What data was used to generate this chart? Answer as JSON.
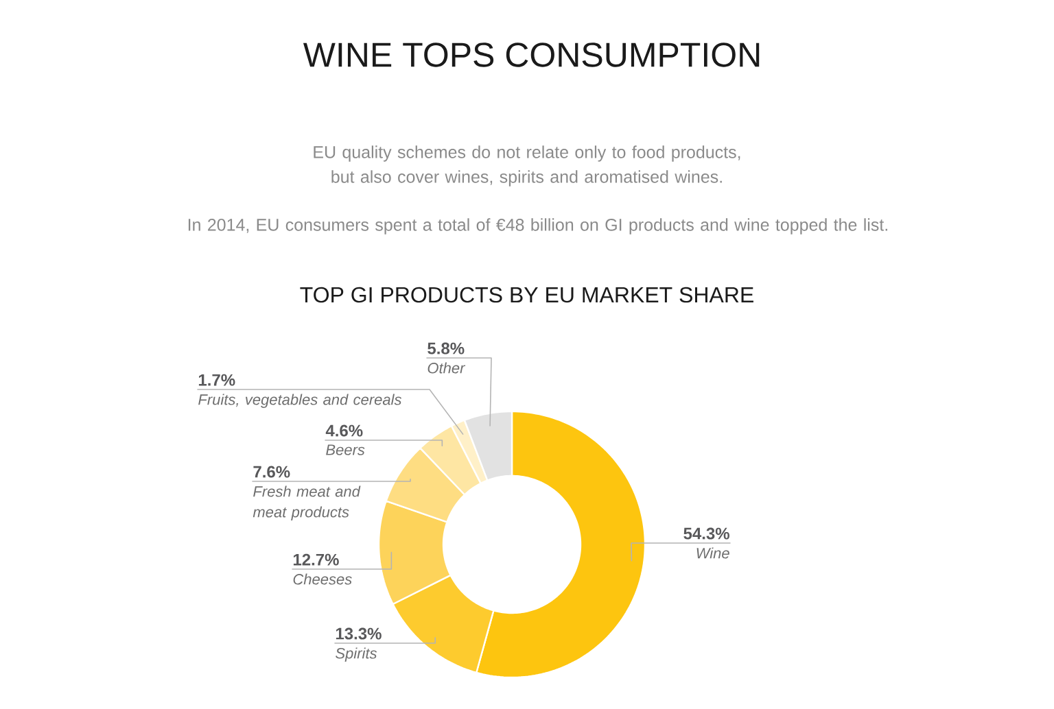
{
  "chart_data": {
    "type": "donut",
    "title": "WINE TOPS CONSUMPTION",
    "subtitle": "TOP GI PRODUCTS BY EU MARKET SHARE",
    "annotations": [
      "EU quality schemes do not relate only to food products, but also cover wines, spirits and aromatised wines.",
      "In 2014, EU consumers spent a total of €48 billion on GI products and wine topped the list."
    ],
    "categories": [
      "Wine",
      "Spirits",
      "Cheeses",
      "Fresh meat and meat products",
      "Beers",
      "Fruits, vegetables and cereals",
      "Other"
    ],
    "values": [
      54.3,
      13.3,
      12.7,
      7.6,
      4.6,
      1.7,
      5.8
    ],
    "colors": [
      "#fdc50f",
      "#fdcb2e",
      "#fdd35a",
      "#fedd82",
      "#fee6a3",
      "#fff0c8",
      "#e2e2e2"
    ],
    "value_labels": [
      "54.3%",
      "13.3%",
      "12.7%",
      "7.6%",
      "4.6%",
      "1.7%",
      "5.8%"
    ]
  }
}
